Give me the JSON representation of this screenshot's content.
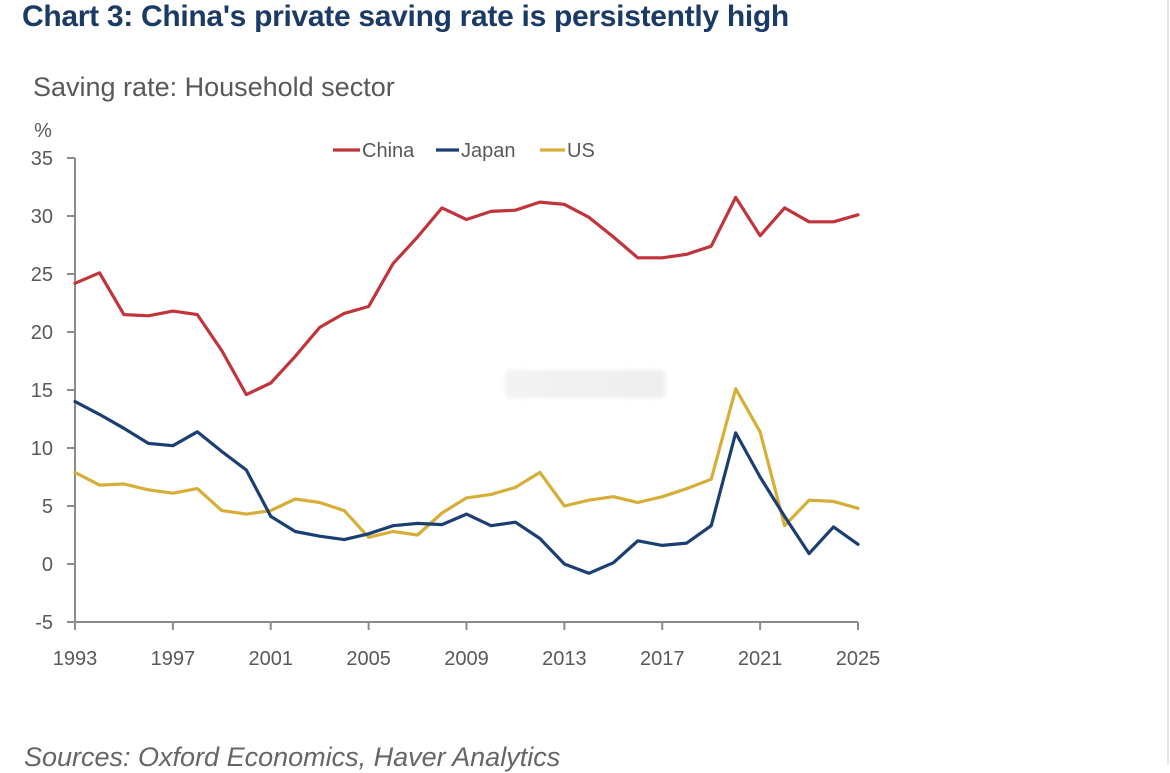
{
  "chart_data": {
    "type": "line",
    "title": "Chart 3: China's private saving rate is persistently high",
    "subtitle": "Saving rate: Household sector",
    "ylabel": "%",
    "xlabel": "",
    "source": "Sources: Oxford Economics, Haver Analytics",
    "ylim": [
      -5,
      35
    ],
    "xlim": [
      1993,
      2025
    ],
    "yticks": [
      35,
      30,
      25,
      20,
      15,
      10,
      5,
      0,
      -5
    ],
    "ytick_labels": [
      "35",
      "30",
      "25",
      "20",
      "15",
      "10",
      "5",
      "0",
      "-5"
    ],
    "xticks": [
      1993,
      1997,
      2001,
      2005,
      2009,
      2013,
      2017,
      2021,
      2025
    ],
    "xtick_labels": [
      "1993",
      "1997",
      "2001",
      "2005",
      "2009",
      "2013",
      "2017",
      "2021",
      "2025"
    ],
    "grid": false,
    "legend_position": "top-center",
    "x": [
      1993,
      1994,
      1995,
      1996,
      1997,
      1998,
      1999,
      2000,
      2001,
      2002,
      2003,
      2004,
      2005,
      2006,
      2007,
      2008,
      2009,
      2010,
      2011,
      2012,
      2013,
      2014,
      2015,
      2016,
      2017,
      2018,
      2019,
      2020,
      2021,
      2022,
      2023,
      2024,
      2025
    ],
    "series": [
      {
        "name": "China",
        "color": "#c0343b",
        "values": [
          24.2,
          25.1,
          21.5,
          21.4,
          21.8,
          21.5,
          18.4,
          14.6,
          15.6,
          17.9,
          20.4,
          21.6,
          22.2,
          25.9,
          28.2,
          30.7,
          29.7,
          30.4,
          30.5,
          31.2,
          31.0,
          29.9,
          28.2,
          26.4,
          26.4,
          26.7,
          27.4,
          31.6,
          28.3,
          30.7,
          29.5,
          29.5,
          30.1
        ]
      },
      {
        "name": "Japan",
        "color": "#1b3f72",
        "values": [
          14.0,
          12.9,
          11.7,
          10.4,
          10.2,
          11.4,
          9.7,
          8.1,
          4.1,
          2.8,
          2.4,
          2.1,
          2.6,
          3.3,
          3.5,
          3.4,
          4.3,
          3.3,
          3.6,
          2.2,
          0.0,
          -0.8,
          0.1,
          2.0,
          1.6,
          1.8,
          3.3,
          11.3,
          7.5,
          4.1,
          0.9,
          3.2,
          1.7
        ]
      },
      {
        "name": "US",
        "color": "#d6ae38",
        "values": [
          7.9,
          6.8,
          6.9,
          6.4,
          6.1,
          6.5,
          4.6,
          4.3,
          4.6,
          5.6,
          5.3,
          4.6,
          2.3,
          2.8,
          2.5,
          4.4,
          5.7,
          6.0,
          6.6,
          7.9,
          5.0,
          5.5,
          5.8,
          5.3,
          5.8,
          6.5,
          7.3,
          15.1,
          11.4,
          3.3,
          5.5,
          5.4,
          4.8
        ]
      }
    ]
  }
}
